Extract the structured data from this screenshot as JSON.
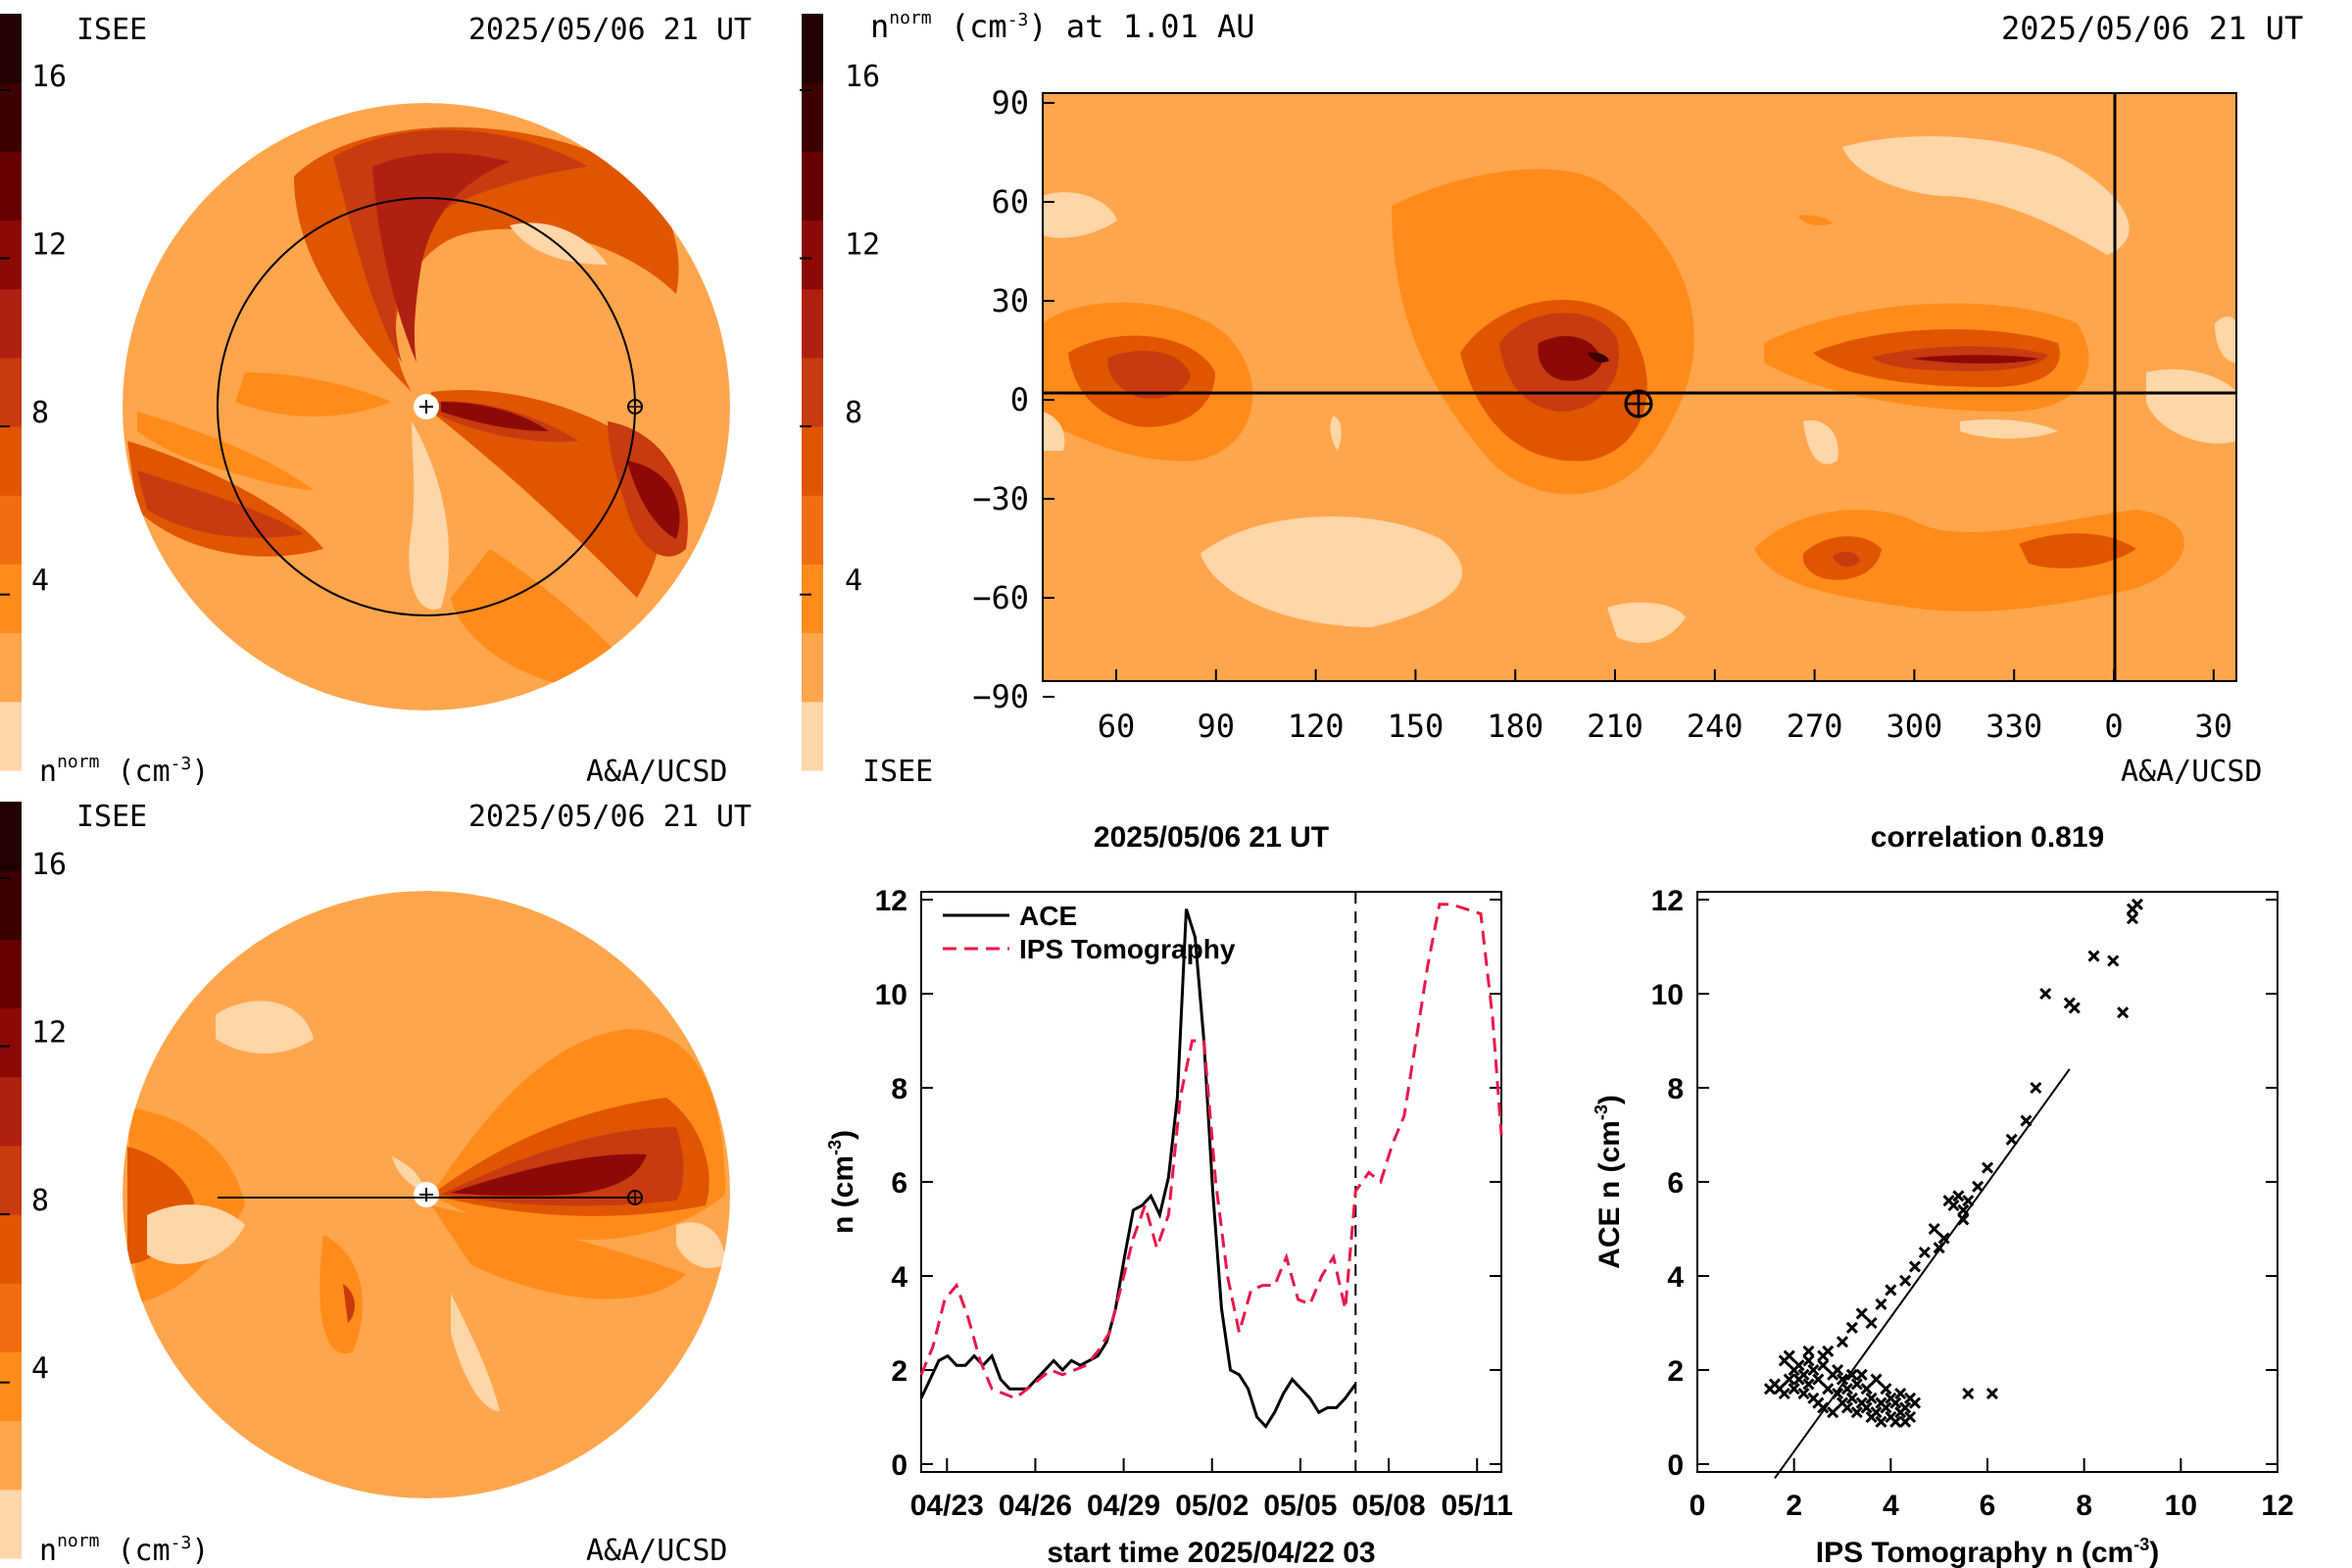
{
  "colorbar": {
    "ticks": [
      "16",
      "12",
      "8",
      "4"
    ],
    "levels": [
      "#ffd6a8",
      "#ffa64d",
      "#ff8c1a",
      "#f26d10",
      "#e05500",
      "#c83a10",
      "#b02010",
      "#8c0a05",
      "#640000",
      "#3c0000",
      "#200000"
    ]
  },
  "panels": {
    "eq_top": {
      "left_label": "ISEE",
      "time": "2025/05/06 21 UT",
      "units": "n",
      "units_sup": "norm",
      "units_tail": " (cm",
      "units_exp": "-3",
      "units_close": ")",
      "credit": "A&A/UCSD"
    },
    "eq_bottom": {
      "left_label": "ISEE",
      "time": "2025/05/06 21 UT",
      "units": "n",
      "units_sup": "norm",
      "units_tail": " (cm",
      "units_exp": "-3",
      "units_close": ")",
      "credit": "A&A/UCSD"
    },
    "map": {
      "title_n": "n",
      "title_sup": "norm",
      "title_tail": " (cm",
      "title_exp": "-3",
      "title_close": ") at 1.01 AU",
      "time": "2025/05/06 21 UT",
      "left_label": "ISEE",
      "credit": "A&A/UCSD",
      "y_ticks": [
        "90",
        "60",
        "30",
        "0",
        "−30",
        "−60",
        "−90"
      ],
      "x_ticks": [
        "60",
        "90",
        "120",
        "150",
        "180",
        "210",
        "240",
        "270",
        "300",
        "330",
        "0",
        "30"
      ]
    }
  },
  "chart_data": [
    {
      "type": "line",
      "title": "2025/05/06 21 UT",
      "xlabel": "start time 2025/04/22 03",
      "ylabel": "n (cm",
      "ylabel_exp": "-3",
      "ylabel_close": ")",
      "x_tick_labels": [
        "04/23",
        "04/26",
        "04/29",
        "05/02",
        "05/05",
        "05/08",
        "05/11"
      ],
      "x_tick_days": [
        0.875,
        3.875,
        6.875,
        9.875,
        12.875,
        15.875,
        18.875
      ],
      "xlim_days": [
        0,
        19.7
      ],
      "ylim": [
        0,
        12
      ],
      "y_ticks": [
        0,
        2,
        4,
        6,
        8,
        10,
        12
      ],
      "current_time_day": 14.75,
      "series": [
        {
          "name": "ACE",
          "color": "#000000",
          "dash": "none",
          "x": [
            0,
            0.3,
            0.6,
            0.9,
            1.2,
            1.5,
            1.8,
            2.1,
            2.4,
            2.7,
            3.0,
            3.3,
            3.6,
            3.9,
            4.2,
            4.5,
            4.8,
            5.1,
            5.4,
            5.7,
            6.0,
            6.3,
            6.6,
            6.9,
            7.2,
            7.5,
            7.8,
            8.1,
            8.4,
            8.7,
            9.0,
            9.3,
            9.6,
            9.9,
            10.2,
            10.5,
            10.8,
            11.1,
            11.4,
            11.7,
            12.0,
            12.3,
            12.6,
            12.9,
            13.2,
            13.5,
            13.8,
            14.1,
            14.4,
            14.75
          ],
          "y": [
            1.4,
            1.8,
            2.2,
            2.3,
            2.1,
            2.1,
            2.3,
            2.1,
            2.3,
            1.8,
            1.6,
            1.6,
            1.6,
            1.8,
            2.0,
            2.2,
            2.0,
            2.2,
            2.1,
            2.2,
            2.3,
            2.6,
            3.3,
            4.4,
            5.4,
            5.5,
            5.7,
            5.3,
            6.1,
            7.8,
            11.8,
            11.2,
            9.0,
            5.8,
            3.3,
            2.0,
            1.9,
            1.6,
            1.0,
            0.8,
            1.1,
            1.5,
            1.8,
            1.6,
            1.4,
            1.1,
            1.2,
            1.2,
            1.4,
            1.7
          ]
        },
        {
          "name": "IPS Tomography",
          "color": "#e8174a",
          "dash": "14,8",
          "x": [
            0,
            0.4,
            0.8,
            1.2,
            1.6,
            2.0,
            2.4,
            2.8,
            3.2,
            3.6,
            4.0,
            4.4,
            4.8,
            5.2,
            5.6,
            6.0,
            6.4,
            6.8,
            7.2,
            7.6,
            8.0,
            8.4,
            8.8,
            9.2,
            9.6,
            10.0,
            10.4,
            10.8,
            11.2,
            11.6,
            12.0,
            12.4,
            12.8,
            13.2,
            13.6,
            14.0,
            14.4,
            14.75,
            15.2,
            15.6,
            16.0,
            16.4,
            16.8,
            17.2,
            17.6,
            18.0,
            18.5,
            19.0,
            19.4,
            19.7
          ],
          "y": [
            1.9,
            2.5,
            3.5,
            3.8,
            3.1,
            2.2,
            1.6,
            1.5,
            1.4,
            1.6,
            1.8,
            2.0,
            1.9,
            2.0,
            2.1,
            2.4,
            2.8,
            3.8,
            4.8,
            5.5,
            4.6,
            5.3,
            7.8,
            9.0,
            9.0,
            6.0,
            4.0,
            2.8,
            3.7,
            3.8,
            3.8,
            4.4,
            3.5,
            3.4,
            4.0,
            4.4,
            3.3,
            5.8,
            6.2,
            6.0,
            6.8,
            7.4,
            9.0,
            10.6,
            11.9,
            11.9,
            11.8,
            11.7,
            9.5,
            7.0
          ]
        }
      ],
      "legend": [
        "ACE",
        "IPS Tomography"
      ]
    },
    {
      "type": "scatter",
      "title": "correlation 0.819",
      "xlabel": "IPS Tomography n (cm",
      "xlabel_exp": "-3",
      "xlabel_close": ")",
      "ylabel": "ACE n (cm",
      "ylabel_exp": "-3",
      "ylabel_close": ")",
      "xlim": [
        0,
        12
      ],
      "ylim": [
        0,
        12
      ],
      "x_ticks": [
        0,
        2,
        4,
        6,
        8,
        10,
        12
      ],
      "y_ticks": [
        0,
        2,
        4,
        6,
        8,
        10,
        12
      ],
      "fit_line": {
        "x": [
          1.6,
          7.7
        ],
        "y": [
          -0.3,
          8.4
        ]
      },
      "points": {
        "x": [
          1.5,
          1.6,
          1.7,
          1.8,
          1.8,
          1.9,
          1.9,
          2.0,
          2.0,
          2.1,
          2.1,
          2.2,
          2.2,
          2.3,
          2.3,
          2.4,
          2.4,
          2.5,
          2.5,
          2.6,
          2.6,
          2.7,
          2.7,
          2.8,
          2.8,
          2.9,
          2.9,
          3.0,
          3.0,
          3.1,
          3.1,
          3.2,
          3.2,
          3.3,
          3.3,
          3.4,
          3.4,
          3.5,
          3.5,
          3.6,
          3.6,
          3.7,
          3.7,
          3.8,
          3.8,
          3.9,
          3.9,
          4.0,
          4.0,
          4.1,
          4.1,
          4.2,
          4.2,
          4.3,
          4.3,
          4.4,
          4.4,
          4.5,
          3.0,
          3.2,
          3.4,
          3.6,
          3.8,
          4.0,
          4.3,
          4.5,
          4.7,
          4.9,
          5.0,
          5.1,
          5.2,
          5.3,
          5.4,
          5.5,
          5.5,
          5.6,
          5.8,
          6.0,
          6.5,
          6.8,
          7.0,
          7.2,
          7.7,
          7.8,
          8.2,
          8.6,
          8.8,
          9.0,
          9.0,
          9.1,
          5.6,
          6.1,
          2.3,
          2.6
        ],
        "y": [
          1.6,
          1.7,
          1.6,
          1.5,
          2.2,
          1.8,
          2.3,
          1.6,
          2.0,
          1.8,
          2.1,
          1.5,
          1.9,
          1.7,
          2.2,
          1.4,
          2.0,
          1.3,
          1.8,
          2.1,
          1.2,
          2.4,
          1.6,
          1.9,
          1.1,
          1.5,
          2.0,
          1.3,
          1.8,
          1.6,
          1.2,
          1.9,
          1.4,
          1.7,
          1.1,
          1.3,
          1.9,
          1.2,
          1.6,
          1.0,
          1.4,
          1.8,
          1.1,
          1.3,
          0.9,
          1.2,
          1.6,
          1.0,
          1.4,
          0.9,
          1.3,
          1.1,
          1.5,
          1.2,
          0.9,
          1.0,
          1.4,
          1.3,
          2.6,
          2.9,
          3.2,
          3.0,
          3.4,
          3.7,
          3.9,
          4.2,
          4.5,
          5.0,
          4.6,
          4.8,
          5.6,
          5.5,
          5.7,
          5.4,
          5.2,
          5.6,
          5.9,
          6.3,
          6.9,
          7.3,
          8.0,
          10.0,
          9.8,
          9.7,
          10.8,
          10.7,
          9.6,
          11.6,
          11.8,
          11.9,
          1.5,
          1.5,
          2.4,
          2.3
        ],
        "marker": "x"
      }
    }
  ]
}
